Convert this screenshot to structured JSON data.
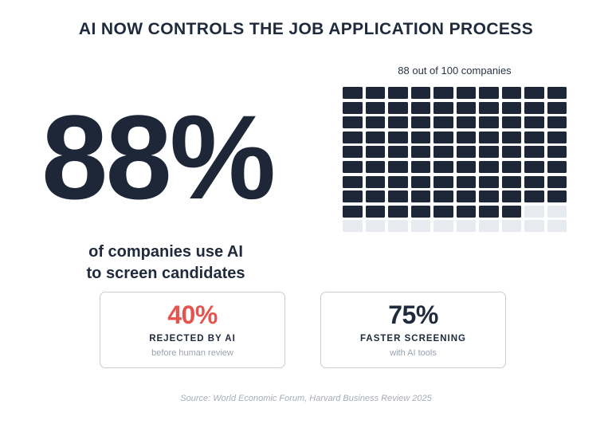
{
  "title": "AI NOW CONTROLS THE JOB APPLICATION PROCESS",
  "hero": {
    "value": "88%",
    "caption_line1": "of companies use AI",
    "caption_line2": "to screen candidates"
  },
  "waffle": {
    "label": "88 out of 100 companies",
    "total": 100,
    "filled": 88,
    "columns": 10,
    "filled_color": "#1d2737",
    "empty_color": "#e7eaef"
  },
  "cards": [
    {
      "value": "40%",
      "value_color": "#e4544c",
      "label": "REJECTED BY AI",
      "sub": "before human review"
    },
    {
      "value": "75%",
      "value_color": "#1f2a3c",
      "label": "FASTER SCREENING",
      "sub": "with AI tools"
    }
  ],
  "source": "Source: World Economic Forum, Harvard Business Review 2025",
  "colors": {
    "ink": "#1f2a3c",
    "accent_red": "#e4544c",
    "muted_gray": "#9aa3af",
    "card_border": "#c9ced7",
    "waffle_empty": "#e7eaef"
  },
  "chart_data": {
    "type": "waffle",
    "title": "88 out of 100 companies",
    "total_units": 100,
    "filled_units": 88,
    "empty_units": 12,
    "grid": {
      "rows": 10,
      "columns": 10,
      "fill_order": "row-major from top-left"
    },
    "filled_color": "#1d2737",
    "empty_color": "#e7eaef",
    "legend_position": "none",
    "headline_stat": {
      "value": 88,
      "unit": "%",
      "label": "of companies use AI to screen candidates"
    },
    "supporting_stats": [
      {
        "value": 40,
        "unit": "%",
        "label": "REJECTED BY AI",
        "note": "before human review"
      },
      {
        "value": 75,
        "unit": "%",
        "label": "FASTER SCREENING",
        "note": "with AI tools"
      }
    ]
  }
}
